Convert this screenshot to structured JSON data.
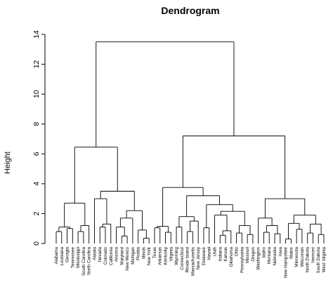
{
  "chart_data": {
    "type": "dendrogram",
    "title": "Dendrogram",
    "ylabel": "Height",
    "ylim": [
      0,
      14
    ],
    "yticks": [
      0,
      2,
      4,
      6,
      8,
      10,
      12,
      14
    ],
    "grid": false,
    "leaves": [
      "Alabama",
      "Louisiana",
      "Georgia",
      "Tennessee",
      "Mississippi",
      "South Carolina",
      "North Carolina",
      "Alaska",
      "Nevada",
      "Colorado",
      "California",
      "Arizona",
      "Maryland",
      "New Mexico",
      "Michigan",
      "Florida",
      "Illinois",
      "New York",
      "Texas",
      "Arkansas",
      "Kentucky",
      "Virginia",
      "Wyoming",
      "Connecticut",
      "Rhode Island",
      "Massachusetts",
      "New Jersey",
      "Delaware",
      "Hawaii",
      "Utah",
      "Indiana",
      "Kansas",
      "Oklahoma",
      "Ohio",
      "Pennsylvania",
      "Missouri",
      "Oregon",
      "Washington",
      "Idaho",
      "Montana",
      "Nebraska",
      "Iowa",
      "New Hampshire",
      "Maine",
      "Minnesota",
      "Wisconsin",
      "North Dakota",
      "Vermont",
      "South Dakota",
      "West Virginia"
    ],
    "tree": {
      "h": 13.5,
      "c": [
        {
          "h": 6.45,
          "c": [
            {
              "h": 2.7,
              "c": [
                {
                  "h": 1.1,
                  "c": [
                    {
                      "h": 0.8,
                      "c": [
                        "Alabama",
                        "Louisiana"
                      ]
                    },
                    {
                      "h": 1.0,
                      "c": [
                        "Georgia",
                        "Tennessee"
                      ]
                    }
                  ]
                },
                {
                  "h": 1.2,
                  "c": [
                    {
                      "h": 0.8,
                      "c": [
                        "Mississippi",
                        "South Carolina"
                      ]
                    },
                    "North Carolina"
                  ]
                }
              ]
            },
            {
              "h": 3.5,
              "c": [
                {
                  "h": 3.0,
                  "c": [
                    "Alaska",
                    {
                      "h": 1.3,
                      "c": [
                        {
                          "h": 1.1,
                          "c": [
                            "Nevada",
                            "Colorado"
                          ]
                        },
                        "California"
                      ]
                    }
                  ]
                },
                {
                  "h": 2.2,
                  "c": [
                    {
                      "h": 1.7,
                      "c": [
                        {
                          "h": 1.1,
                          "c": [
                            "Arizona",
                            {
                              "h": 0.5,
                              "c": [
                                "Maryland",
                                "New Mexico"
                              ]
                            }
                          ]
                        },
                        "Michigan"
                      ]
                    },
                    {
                      "h": 0.9,
                      "c": [
                        "Florida",
                        {
                          "h": 0.35,
                          "c": [
                            "Illinois",
                            "New York"
                          ]
                        }
                      ]
                    }
                  ]
                }
              ]
            }
          ]
        },
        {
          "h": 7.2,
          "c": [
            {
              "h": 3.75,
              "c": [
                {
                  "h": 1.15,
                  "c": [
                    {
                      "h": 1.05,
                      "c": [
                        "Texas",
                        "Arkansas"
                      ]
                    },
                    {
                      "h": 0.75,
                      "c": [
                        "Kentucky",
                        "Virginia"
                      ]
                    }
                  ]
                },
                {
                  "h": 3.2,
                  "c": [
                    {
                      "h": 1.8,
                      "c": [
                        {
                          "h": 1.1,
                          "c": [
                            "Wyoming",
                            "Connecticut"
                          ]
                        },
                        {
                          "h": 1.5,
                          "c": [
                            {
                              "h": 0.8,
                              "c": [
                                "Rhode Island",
                                "Massachusetts"
                              ]
                            },
                            "New Jersey"
                          ]
                        }
                      ]
                    },
                    {
                      "h": 2.6,
                      "c": [
                        {
                          "h": 1.05,
                          "c": [
                            "Delaware",
                            "Hawaii"
                          ]
                        },
                        {
                          "h": 2.15,
                          "c": [
                            {
                              "h": 1.9,
                              "c": [
                                "Utah",
                                {
                                  "h": 0.85,
                                  "c": [
                                    {
                                      "h": 0.55,
                                      "c": [
                                        "Indiana",
                                        "Kansas"
                                      ]
                                    },
                                    "Oklahoma"
                                  ]
                                }
                              ]
                            },
                            {
                              "h": 1.2,
                              "c": [
                                {
                                  "h": 0.7,
                                  "c": [
                                    "Ohio",
                                    "Pennsylvania"
                                  ]
                                },
                                {
                                  "h": 0.6,
                                  "c": [
                                    "Missouri",
                                    "Oregon"
                                  ]
                                }
                              ]
                            }
                          ]
                        }
                      ]
                    }
                  ]
                }
              ]
            },
            {
              "h": 3.0,
              "c": [
                {
                  "h": 1.7,
                  "c": [
                    "Washington",
                    {
                      "h": 1.2,
                      "c": [
                        {
                          "h": 0.75,
                          "c": [
                            "Idaho",
                            "Montana"
                          ]
                        },
                        {
                          "h": 0.65,
                          "c": [
                            "Nebraska",
                            "Iowa"
                          ]
                        }
                      ]
                    }
                  ]
                },
                {
                  "h": 1.9,
                  "c": [
                    {
                      "h": 1.35,
                      "c": [
                        {
                          "h": 0.3,
                          "c": [
                            "New Hampshire",
                            "Maine"
                          ]
                        },
                        {
                          "h": 0.95,
                          "c": [
                            "Minnesota",
                            "Wisconsin"
                          ]
                        }
                      ]
                    },
                    {
                      "h": 1.3,
                      "c": [
                        {
                          "h": 0.7,
                          "c": [
                            "North Dakota",
                            "Vermont"
                          ]
                        },
                        {
                          "h": 0.6,
                          "c": [
                            "South Dakota",
                            "West Virginia"
                          ]
                        }
                      ]
                    }
                  ]
                }
              ]
            }
          ]
        }
      ]
    }
  }
}
